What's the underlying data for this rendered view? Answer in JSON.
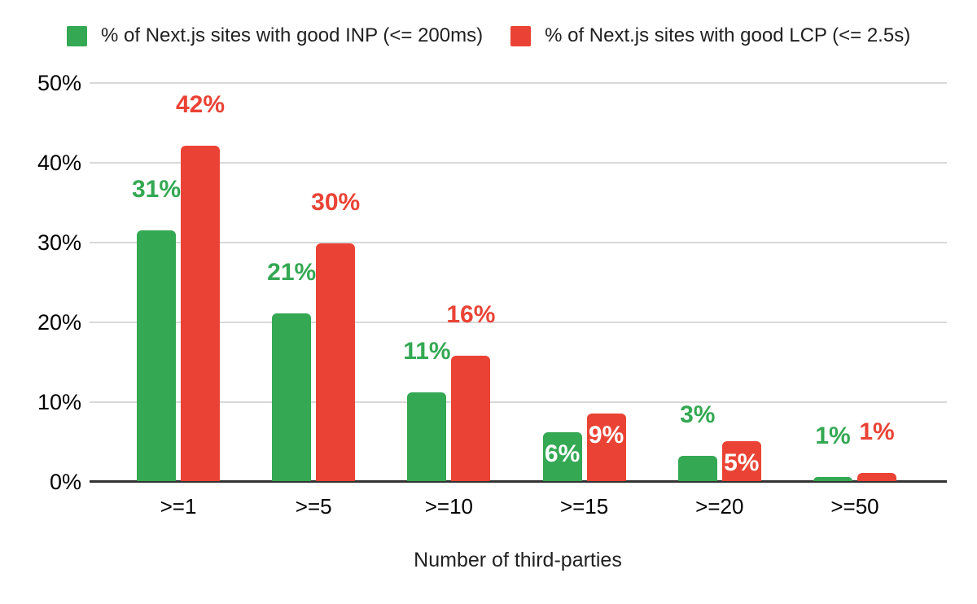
{
  "chart_data": {
    "type": "bar",
    "categories": [
      ">=1",
      ">=5",
      ">=10",
      ">=15",
      ">=20",
      ">=50"
    ],
    "series": [
      {
        "name": "% of Next.js sites with good INP (<= 200ms)",
        "color": "#34a853",
        "values": [
          31.4,
          21,
          11.1,
          6.1,
          3.2,
          0.5
        ],
        "labels": [
          "31%",
          "21%",
          "11%",
          "6%",
          "3%",
          "1%"
        ],
        "label_placement": [
          "above",
          "above",
          "above",
          "inside",
          "above",
          "above"
        ]
      },
      {
        "name": "% of Next.js sites with good LCP (<= 2.5s)",
        "color": "#ea4335",
        "values": [
          42,
          29.8,
          15.7,
          8.5,
          5,
          1
        ],
        "labels": [
          "42%",
          "30%",
          "16%",
          "9%",
          "5%",
          "1%"
        ],
        "label_placement": [
          "above",
          "above",
          "above",
          "inside",
          "inside",
          "above"
        ]
      }
    ],
    "xlabel": "Number of third-parties",
    "ylabel": "",
    "ylim": [
      0,
      50
    ],
    "yticks": [
      "0%",
      "10%",
      "20%",
      "30%",
      "40%",
      "50%"
    ],
    "grid": true,
    "legend_position": "top",
    "inside_label_color": "#ffffff",
    "gridline_color": "#d9d9d9",
    "axis_line_color": "#333333",
    "background_color": "#ffffff"
  }
}
